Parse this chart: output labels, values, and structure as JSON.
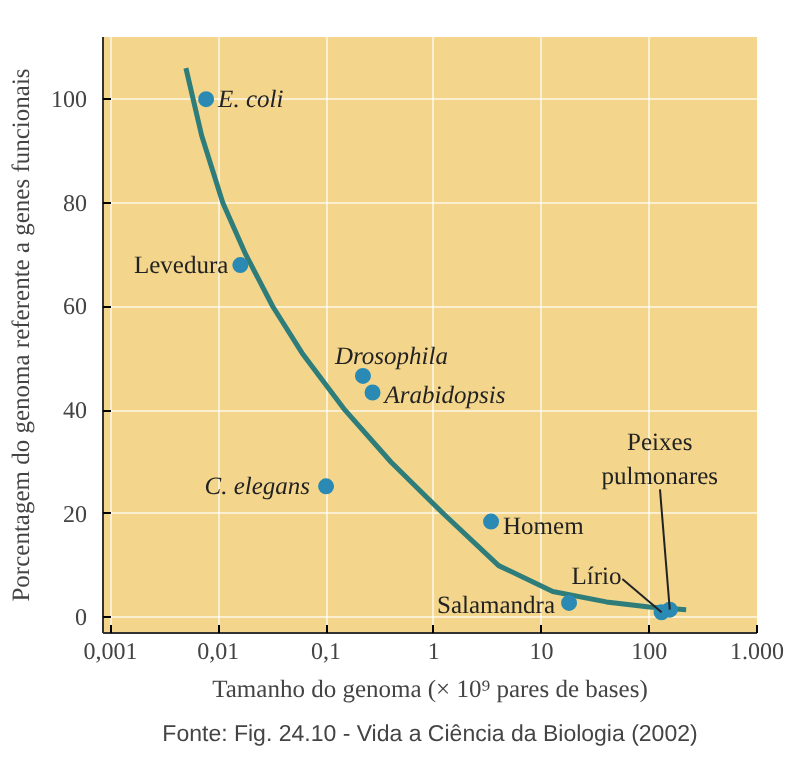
{
  "chart_data": {
    "type": "scatter",
    "xlabel": "Tamanho do genoma (× 10⁹ pares de bases)",
    "ylabel": "Porcentagem do genoma referente a genes funcionais",
    "log": "x",
    "grid": true,
    "marker": "circle",
    "xlim": [
      0.00085,
      1000
    ],
    "ylim": [
      -3,
      112
    ],
    "xticks": [
      {
        "value": 0.001,
        "label": "0,001"
      },
      {
        "value": 0.01,
        "label": "0,01"
      },
      {
        "value": 0.1,
        "label": "0,1"
      },
      1,
      10,
      100,
      {
        "value": 1000,
        "label": "1.000"
      }
    ],
    "yticks": [
      0,
      20,
      40,
      60,
      80,
      100
    ],
    "series": [
      {
        "color": "#2a8ab4",
        "x": [
          0.0077,
          0.016,
          0.22,
          0.27,
          0.1,
          3.4,
          18,
          130,
          155
        ],
        "values": [
          100,
          68,
          46.6,
          43.4,
          25.3,
          18.5,
          2.8,
          1,
          1.5
        ]
      },
      {
        "type": "line",
        "color": "#2e7d7a",
        "line_style": "solid",
        "marker": "none",
        "x": [
          0.005,
          0.007,
          0.011,
          0.018,
          0.032,
          0.06,
          0.15,
          0.4,
          1.23,
          4,
          12.7,
          40,
          100,
          220
        ],
        "values": [
          106,
          93,
          80,
          70,
          60,
          51,
          40,
          30,
          20,
          10,
          5,
          3,
          2,
          1.5
        ]
      }
    ],
    "annotations": [
      {
        "text": "E. coli",
        "x": 0.0077,
        "y": 100
      },
      {
        "text": "Levedura",
        "x": 0.016,
        "y": 68
      },
      {
        "text": "Drosophila",
        "x": 0.22,
        "y": 46.6
      },
      {
        "text": "Arabidopsis",
        "x": 0.27,
        "y": 43.4
      },
      {
        "text": "C. elegans",
        "x": 0.1,
        "y": 25.3
      },
      {
        "text": "Homem",
        "x": 3.4,
        "y": 18.5
      },
      {
        "text": "Salamandra",
        "x": 18,
        "y": 2.8
      },
      {
        "text": "Lírio",
        "x": 130,
        "y": 1
      },
      {
        "text": "Peixes\npulmonares",
        "x": 155,
        "y": 1.5
      },
      "Fonte: Fig. 24.10 - Vida a Ciência da Biologia (2002)"
    ]
  }
}
